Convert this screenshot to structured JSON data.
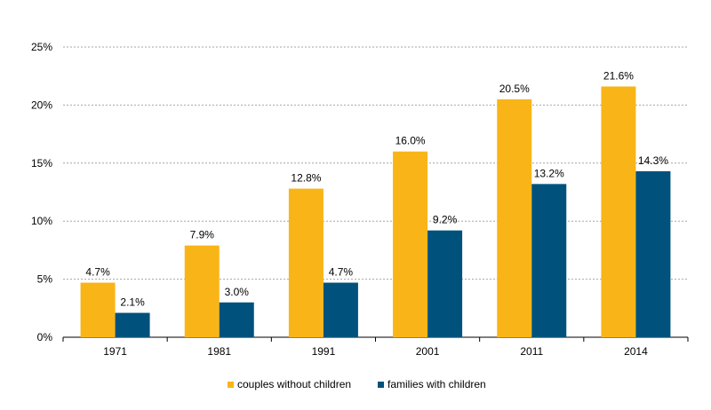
{
  "chart_data": {
    "type": "bar",
    "categories": [
      "1971",
      "1981",
      "1991",
      "2001",
      "2011",
      "2014"
    ],
    "series": [
      {
        "name": "couples without children",
        "values": [
          4.7,
          7.9,
          12.8,
          16.0,
          20.5,
          21.6
        ],
        "labels": [
          "4.7%",
          "7.9%",
          "12.8%",
          "16.0%",
          "20.5%",
          "21.6%"
        ],
        "color": "#F9B517"
      },
      {
        "name": "families with children",
        "values": [
          2.1,
          3.0,
          4.7,
          9.2,
          13.2,
          14.3
        ],
        "labels": [
          "2.1%",
          "3.0%",
          "4.7%",
          "9.2%",
          "13.2%",
          "14.3%"
        ],
        "color": "#00527C"
      }
    ],
    "yticks": [
      0,
      5,
      10,
      15,
      20,
      25
    ],
    "ytick_labels": [
      "0%",
      "5%",
      "10%",
      "15%",
      "20%",
      "25%"
    ],
    "ylim": [
      0,
      25
    ],
    "grid": true,
    "legend_position": "bottom-center"
  }
}
